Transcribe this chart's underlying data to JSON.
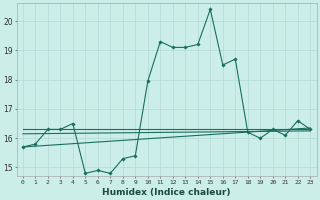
{
  "xlabel": "Humidex (Indice chaleur)",
  "bg_color": "#cceee8",
  "grid_color": "#b8ddd8",
  "line_color": "#1a6e60",
  "xlim": [
    -0.5,
    23.5
  ],
  "ylim": [
    14.7,
    20.6
  ],
  "yticks": [
    15,
    16,
    17,
    18,
    19,
    20
  ],
  "xticks": [
    0,
    1,
    2,
    3,
    4,
    5,
    6,
    7,
    8,
    9,
    10,
    11,
    12,
    13,
    14,
    15,
    16,
    17,
    18,
    19,
    20,
    21,
    22,
    23
  ],
  "series1": [
    15.7,
    15.8,
    16.3,
    16.3,
    16.5,
    14.8,
    14.9,
    14.8,
    15.3,
    15.4,
    17.95,
    19.3,
    19.1,
    19.1,
    19.2,
    20.4,
    18.5,
    18.7,
    16.2,
    16.0,
    16.3,
    16.1,
    16.6,
    16.3
  ],
  "series2_x": [
    0,
    23
  ],
  "series2_y": [
    16.3,
    16.3
  ],
  "series3_x": [
    0,
    23
  ],
  "series3_y": [
    15.7,
    16.35
  ],
  "series4_x": [
    0,
    23
  ],
  "series4_y": [
    16.15,
    16.25
  ]
}
